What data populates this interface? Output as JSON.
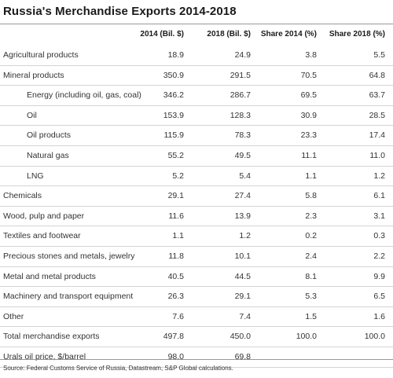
{
  "title": "Russia's Merchandise Exports 2014-2018",
  "columns": [
    "2014 (Bil. $)",
    "2018 (Bil. $)",
    "Share 2014 (%)",
    "Share 2018 (%)"
  ],
  "rows": [
    {
      "label": "Agricultural products",
      "indent": false,
      "values": [
        "18.9",
        "24.9",
        "3.8",
        "5.5"
      ]
    },
    {
      "label": "Mineral products",
      "indent": false,
      "values": [
        "350.9",
        "291.5",
        "70.5",
        "64.8"
      ]
    },
    {
      "label": "Energy (including oil, gas, coal)",
      "indent": true,
      "values": [
        "346.2",
        "286.7",
        "69.5",
        "63.7"
      ]
    },
    {
      "label": "Oil",
      "indent": true,
      "values": [
        "153.9",
        "128.3",
        "30.9",
        "28.5"
      ]
    },
    {
      "label": "Oil products",
      "indent": true,
      "values": [
        "115.9",
        "78.3",
        "23.3",
        "17.4"
      ]
    },
    {
      "label": "Natural gas",
      "indent": true,
      "values": [
        "55.2",
        "49.5",
        "11.1",
        "11.0"
      ]
    },
    {
      "label": "LNG",
      "indent": true,
      "values": [
        "5.2",
        "5.4",
        "1.1",
        "1.2"
      ]
    },
    {
      "label": "Chemicals",
      "indent": false,
      "values": [
        "29.1",
        "27.4",
        "5.8",
        "6.1"
      ]
    },
    {
      "label": "Wood, pulp and paper",
      "indent": false,
      "values": [
        "11.6",
        "13.9",
        "2.3",
        "3.1"
      ]
    },
    {
      "label": "Textiles and footwear",
      "indent": false,
      "values": [
        "1.1",
        "1.2",
        "0.2",
        "0.3"
      ]
    },
    {
      "label": "Precious stones and metals, jewelry",
      "indent": false,
      "values": [
        "11.8",
        "10.1",
        "2.4",
        "2.2"
      ]
    },
    {
      "label": "Metal and metal products",
      "indent": false,
      "values": [
        "40.5",
        "44.5",
        "8.1",
        "9.9"
      ]
    },
    {
      "label": "Machinery and transport equipment",
      "indent": false,
      "values": [
        "26.3",
        "29.1",
        "5.3",
        "6.5"
      ]
    },
    {
      "label": "Other",
      "indent": false,
      "values": [
        "7.6",
        "7.4",
        "1.5",
        "1.6"
      ]
    },
    {
      "label": "Total merchandise exports",
      "indent": false,
      "values": [
        "497.8",
        "450.0",
        "100.0",
        "100.0"
      ]
    },
    {
      "label": "Urals oil price, $/barrel",
      "indent": false,
      "values": [
        "98.0",
        "69.8",
        "",
        ""
      ]
    }
  ],
  "source": "Source: Federal Customs Service of Russia, Datastream, S&P Global calculations."
}
